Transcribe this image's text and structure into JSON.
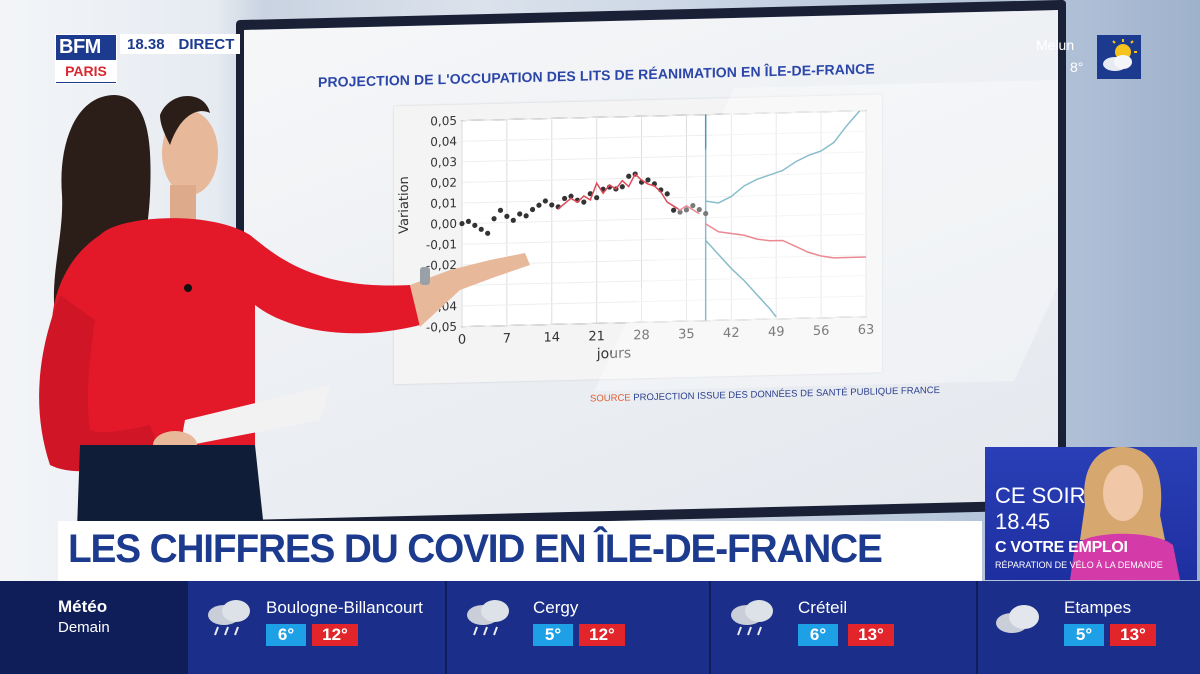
{
  "broadcast": {
    "channel": "BFM",
    "channel_sub": "PARIS",
    "time": "18.38",
    "live_label": "DIRECT"
  },
  "corner_weather": {
    "city": "Melun",
    "temperature": "8°",
    "icon": "sun-cloud-icon"
  },
  "screen": {
    "title": "PROJECTION DE L'OCCUPATION DES LITS DE RÉANIMATION EN ÎLE-DE-FRANCE",
    "source_label": "SOURCE",
    "source_text": "PROJECTION ISSUE DES DONNÉES DE SANTÉ PUBLIQUE FRANCE"
  },
  "chart_data": {
    "type": "line",
    "xlabel": "jours",
    "ylabel": "Variation",
    "xlim": [
      0,
      63
    ],
    "ylim": [
      -0.05,
      0.05
    ],
    "x_ticks": [
      "0",
      "7",
      "14",
      "21",
      "28",
      "35",
      "42",
      "49",
      "56",
      "63"
    ],
    "y_ticks": [
      "0,05",
      "0,04",
      "0,03",
      "0,02",
      "0,01",
      "0,00",
      "-0,01",
      "-0,02",
      "-0,03",
      "-0,04",
      "-0,05"
    ],
    "grid": true,
    "vertical_marker_x": 38,
    "series": [
      {
        "kind": "scatter",
        "color": "#333333",
        "points": [
          [
            0,
            0.0
          ],
          [
            1,
            0.001
          ],
          [
            2,
            -0.001
          ],
          [
            3,
            -0.003
          ],
          [
            4,
            -0.005
          ],
          [
            5,
            0.002
          ],
          [
            6,
            0.006
          ],
          [
            7,
            0.003
          ],
          [
            8,
            0.001
          ],
          [
            9,
            0.004
          ],
          [
            10,
            0.003
          ],
          [
            11,
            0.006
          ],
          [
            12,
            0.008
          ],
          [
            13,
            0.01
          ],
          [
            14,
            0.008
          ],
          [
            15,
            0.007
          ],
          [
            16,
            0.011
          ],
          [
            17,
            0.012
          ],
          [
            18,
            0.01
          ],
          [
            19,
            0.009
          ],
          [
            20,
            0.013
          ],
          [
            21,
            0.011
          ],
          [
            22,
            0.015
          ],
          [
            23,
            0.016
          ],
          [
            24,
            0.015
          ],
          [
            25,
            0.016
          ],
          [
            26,
            0.021
          ],
          [
            27,
            0.022
          ],
          [
            28,
            0.018
          ],
          [
            29,
            0.019
          ],
          [
            30,
            0.017
          ],
          [
            31,
            0.014
          ],
          [
            32,
            0.012
          ],
          [
            33,
            0.004
          ],
          [
            34,
            0.003
          ],
          [
            35,
            0.004
          ],
          [
            36,
            0.006
          ],
          [
            37,
            0.004
          ],
          [
            38,
            0.002
          ]
        ]
      },
      {
        "kind": "line",
        "color": "#e04b5a",
        "points": [
          [
            15,
            0.006
          ],
          [
            17,
            0.011
          ],
          [
            18,
            0.009
          ],
          [
            19,
            0.012
          ],
          [
            20,
            0.01
          ],
          [
            21,
            0.018
          ],
          [
            22,
            0.013
          ],
          [
            23,
            0.017
          ],
          [
            24,
            0.015
          ],
          [
            25,
            0.019
          ],
          [
            26,
            0.016
          ],
          [
            27,
            0.022
          ],
          [
            28,
            0.019
          ],
          [
            29,
            0.017
          ],
          [
            30,
            0.016
          ],
          [
            31,
            0.013
          ],
          [
            32,
            0.008
          ],
          [
            33,
            0.006
          ],
          [
            34,
            0.004
          ],
          [
            35,
            0.006
          ],
          [
            36,
            0.004
          ],
          [
            37,
            0.002
          ]
        ]
      },
      {
        "kind": "line",
        "color": "#4a9ab0",
        "points": [
          [
            38,
            0.008
          ],
          [
            40,
            0.007
          ],
          [
            42,
            0.01
          ],
          [
            44,
            0.015
          ],
          [
            46,
            0.018
          ],
          [
            48,
            0.02
          ],
          [
            50,
            0.022
          ],
          [
            52,
            0.026
          ],
          [
            54,
            0.029
          ],
          [
            56,
            0.031
          ],
          [
            58,
            0.035
          ],
          [
            60,
            0.043
          ],
          [
            62,
            0.05
          ]
        ]
      },
      {
        "kind": "line",
        "color": "#e04b5a",
        "points": [
          [
            38,
            -0.003
          ],
          [
            40,
            -0.007
          ],
          [
            42,
            -0.008
          ],
          [
            44,
            -0.009
          ],
          [
            46,
            -0.011
          ],
          [
            48,
            -0.012
          ],
          [
            50,
            -0.012
          ],
          [
            52,
            -0.015
          ],
          [
            54,
            -0.018
          ],
          [
            56,
            -0.02
          ],
          [
            58,
            -0.021
          ],
          [
            60,
            -0.021
          ],
          [
            63,
            -0.021
          ]
        ]
      },
      {
        "kind": "line",
        "color": "#4a9ab0",
        "points": [
          [
            38,
            -0.011
          ],
          [
            40,
            -0.018
          ],
          [
            42,
            -0.025
          ],
          [
            44,
            -0.031
          ],
          [
            46,
            -0.038
          ],
          [
            48,
            -0.045
          ],
          [
            49,
            -0.049
          ]
        ]
      }
    ]
  },
  "headline": "LES CHIFFRES DU COVID EN ÎLE-DE-FRANCE",
  "promo": {
    "title": "CE SOIR",
    "time": "18.45",
    "show": "C VOTRE EMPLOI",
    "subtitle": "RÉPARATION DE VÉLO À LA DEMANDE"
  },
  "weather_bar": {
    "label": "Météo",
    "sublabel": "Demain",
    "cities": [
      {
        "name": "Boulogne-Billancourt",
        "min": "6°",
        "max": "12°",
        "icon": "rain-cloud-icon"
      },
      {
        "name": "Cergy",
        "min": "5°",
        "max": "12°",
        "icon": "rain-cloud-icon"
      },
      {
        "name": "Créteil",
        "min": "6°",
        "max": "13°",
        "icon": "rain-cloud-icon"
      },
      {
        "name": "Etampes",
        "min": "5°",
        "max": "13°",
        "icon": "cloud-icon"
      }
    ]
  }
}
